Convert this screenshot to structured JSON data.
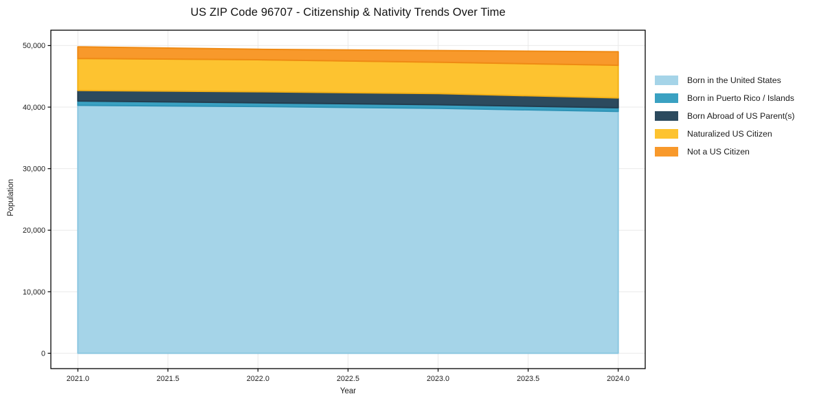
{
  "title": "US ZIP Code 96707 - Citizenship & Nativity Trends Over Time",
  "chart_data": {
    "type": "area",
    "stacked": true,
    "title": "US ZIP Code 96707 - Citizenship & Nativity Trends Over Time",
    "xlabel": "Year",
    "ylabel": "Population",
    "x": [
      2021,
      2022,
      2023,
      2024
    ],
    "series": [
      {
        "name": "Born in the United States",
        "values": [
          40300,
          40100,
          39800,
          39300
        ],
        "fill": "#a5d4e8",
        "edge": "#8cc7e0"
      },
      {
        "name": "Born in Puerto Rico / Islands",
        "values": [
          700,
          600,
          600,
          600
        ],
        "fill": "#3aa1c2",
        "edge": "#2e93b6"
      },
      {
        "name": "Born Abroad of US Parent(s)",
        "values": [
          1700,
          1800,
          1800,
          1600
        ],
        "fill": "#2c4a5e",
        "edge": "#233d4f"
      },
      {
        "name": "Naturalized US Citizen",
        "values": [
          5200,
          5200,
          5100,
          5300
        ],
        "fill": "#fdc330",
        "edge": "#f3b016"
      },
      {
        "name": "Not a US Citizen",
        "values": [
          1900,
          1700,
          1900,
          2200
        ],
        "fill": "#f8992b",
        "edge": "#ef8a14"
      }
    ],
    "xlim": [
      2020.85,
      2024.15
    ],
    "ylim": [
      -2500,
      52500
    ],
    "xticks": {
      "values": [
        2021.0,
        2021.5,
        2022.0,
        2022.5,
        2023.0,
        2023.5,
        2024.0
      ],
      "labels": [
        "2021.0",
        "2021.5",
        "2022.0",
        "2022.5",
        "2023.0",
        "2023.5",
        "2024.0"
      ]
    },
    "yticks": {
      "values": [
        0,
        10000,
        20000,
        30000,
        40000,
        50000
      ],
      "labels": [
        "0",
        "10,000",
        "20,000",
        "30,000",
        "40,000",
        "50,000"
      ]
    },
    "grid": true,
    "legend_position": "right"
  },
  "colors": {
    "background": "#ffffff",
    "grid": "#e9e9e9",
    "frame": "#000000",
    "tick_text": "#1a1a1a"
  }
}
